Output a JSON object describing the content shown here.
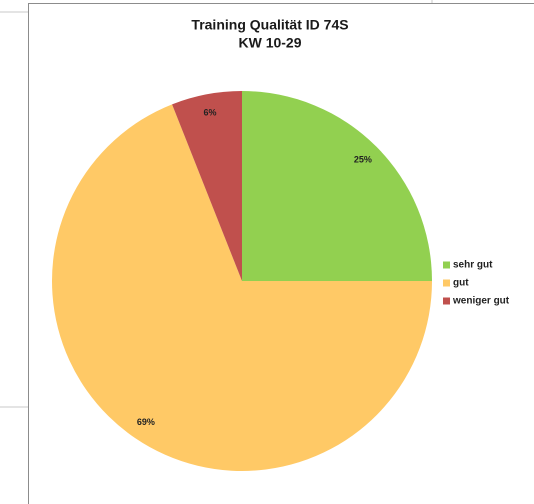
{
  "chart_data": {
    "type": "pie",
    "title": "Training Qualität ID 74S",
    "subtitle": "KW 10-29",
    "categories": [
      "sehr gut",
      "gut",
      "weniger gut"
    ],
    "values": [
      25,
      69,
      6
    ],
    "value_labels": [
      "25%",
      "69%",
      "6%"
    ],
    "colors": [
      "#92d050",
      "#ffc966",
      "#c0504d"
    ],
    "legend": "right"
  }
}
